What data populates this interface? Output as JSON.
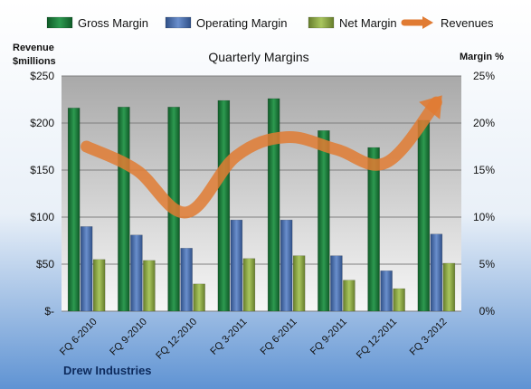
{
  "chart_data": {
    "type": "bar",
    "title": "Quarterly Margins",
    "footer": "Drew Industries",
    "left_axis_label": [
      "Revenue",
      "$millions"
    ],
    "right_axis_label": "Margin %",
    "categories": [
      "FQ 6-2010",
      "FQ 9-2010",
      "FQ 12-2010",
      "FQ 3-2011",
      "FQ 6-2011",
      "FQ 9-2011",
      "FQ 12-2011",
      "FQ 3-2012"
    ],
    "left_ticks": [
      "$-",
      "$50",
      "$100",
      "$150",
      "$200",
      "$250"
    ],
    "right_ticks": [
      "0%",
      "5%",
      "10%",
      "15%",
      "20%",
      "25%"
    ],
    "y_left_range": [
      0,
      250
    ],
    "y_right_range": [
      0,
      25
    ],
    "grid": true,
    "legend_position": "top",
    "series": [
      {
        "name": "Gross Margin",
        "axis": "right",
        "color": "#1e7a3c",
        "values": [
          21.6,
          21.7,
          21.7,
          22.4,
          22.6,
          19.2,
          17.4,
          20.3
        ]
      },
      {
        "name": "Operating Margin",
        "axis": "right",
        "color": "#4e72b0",
        "values": [
          9.0,
          8.1,
          6.7,
          9.7,
          9.7,
          5.9,
          4.3,
          8.2
        ]
      },
      {
        "name": "Net Margin",
        "axis": "right",
        "color": "#8fac4a",
        "values": [
          5.5,
          5.4,
          2.9,
          5.6,
          5.9,
          3.3,
          2.4,
          5.1
        ]
      },
      {
        "name": "Revenues",
        "axis": "left",
        "type": "line",
        "color": "#e07b33",
        "values": [
          175,
          150,
          105,
          165,
          185,
          172,
          158,
          222
        ]
      }
    ]
  }
}
